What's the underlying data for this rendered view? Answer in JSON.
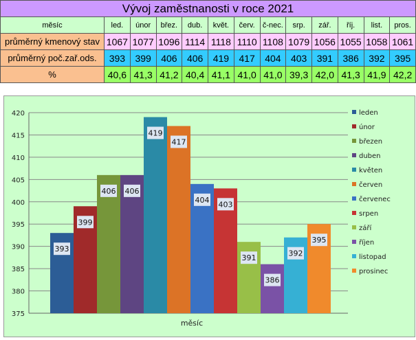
{
  "table": {
    "title": "Vývoj zaměstnanosti v roce 2021",
    "header_label": "měsíc",
    "months": [
      "led.",
      "únor",
      "břez.",
      "dub.",
      "květ.",
      "červ.",
      "č-nec.",
      "srp.",
      "zář.",
      "říj.",
      "list.",
      "pros."
    ],
    "rows": [
      {
        "label": "průměrný kmenový stav",
        "values": [
          "1067",
          "1077",
          "1096",
          "1114",
          "1118",
          "1110",
          "1108",
          "1079",
          "1056",
          "1055",
          "1058",
          "1061"
        ]
      },
      {
        "label": "průměrný poč.zař.ods.",
        "values": [
          "393",
          "399",
          "406",
          "406",
          "419",
          "417",
          "404",
          "403",
          "391",
          "386",
          "392",
          "395"
        ]
      },
      {
        "label": "%",
        "values": [
          "40,6",
          "41,3",
          "41,2",
          "40,4",
          "41,1",
          "41,0",
          "41,0",
          "39,3",
          "42,0",
          "41,3",
          "41,9",
          "42,2"
        ]
      }
    ]
  },
  "chart_data": {
    "type": "bar",
    "xlabel": "měsíc",
    "ylabel": "",
    "ylim": [
      375,
      420
    ],
    "yticks": [
      375,
      380,
      385,
      390,
      395,
      400,
      405,
      410,
      415,
      420
    ],
    "grid": true,
    "legend_position": "right",
    "series": [
      {
        "name": "leden",
        "value": 393,
        "color": "#2c5d96"
      },
      {
        "name": "únor",
        "value": 399,
        "color": "#a02a2a"
      },
      {
        "name": "březen",
        "value": 406,
        "color": "#76963a"
      },
      {
        "name": "duben",
        "value": 406,
        "color": "#5e4582"
      },
      {
        "name": "květen",
        "value": 419,
        "color": "#2a8aa6"
      },
      {
        "name": "červen",
        "value": 417,
        "color": "#dc7326"
      },
      {
        "name": "červenec",
        "value": 404,
        "color": "#3a72c4"
      },
      {
        "name": "srpen",
        "value": 403,
        "color": "#c63434"
      },
      {
        "name": "září",
        "value": 391,
        "color": "#98bf48"
      },
      {
        "name": "říjen",
        "value": 386,
        "color": "#7a52a6"
      },
      {
        "name": "listopad",
        "value": 392,
        "color": "#36b0d4"
      },
      {
        "name": "prosinec",
        "value": 395,
        "color": "#f08a2c"
      }
    ]
  }
}
